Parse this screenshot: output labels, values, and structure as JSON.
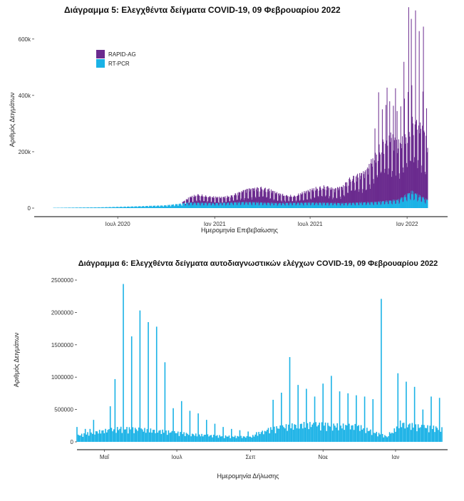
{
  "chart_data": [
    {
      "type": "bar",
      "title": "Διάγραμμα 5: Ελεγχθέντα δείγματα COVID-19, 09 Φεβρουαρίου 2022",
      "xlabel": "Ημερομηνία Επιβεβαίωσης",
      "ylabel": "Αριθμός Δειγμάτων",
      "stacked": true,
      "x_range": [
        "2020-03-01",
        "2022-02-09"
      ],
      "ylim": [
        0,
        650000
      ],
      "yticks": [
        0,
        200000,
        400000,
        600000
      ],
      "ytick_labels": [
        "0",
        "200k",
        "400k",
        "600k"
      ],
      "xtick_labels": [
        {
          "date": "2020-07-01",
          "label": "Ιουλ 2020"
        },
        {
          "date": "2021-01-01",
          "label": "Ιαν 2021"
        },
        {
          "date": "2021-07-01",
          "label": "Ιουλ 2021"
        },
        {
          "date": "2022-01-01",
          "label": "Ιαν 2022"
        }
      ],
      "legend_position": "top-left",
      "grid": false,
      "series": [
        {
          "name": "RAPID-AG",
          "color": "#6a2a8e",
          "points": [
            [
              "2020-11-01",
              5000
            ],
            [
              "2020-11-15",
              20000
            ],
            [
              "2020-12-01",
              30000
            ],
            [
              "2020-12-15",
              25000
            ],
            [
              "2021-01-01",
              22000
            ],
            [
              "2021-01-15",
              20000
            ],
            [
              "2021-02-01",
              25000
            ],
            [
              "2021-02-15",
              35000
            ],
            [
              "2021-03-01",
              45000
            ],
            [
              "2021-03-15",
              50000
            ],
            [
              "2021-04-01",
              55000
            ],
            [
              "2021-04-15",
              48000
            ],
            [
              "2021-05-01",
              35000
            ],
            [
              "2021-05-15",
              28000
            ],
            [
              "2021-06-01",
              25000
            ],
            [
              "2021-06-15",
              35000
            ],
            [
              "2021-07-01",
              45000
            ],
            [
              "2021-07-15",
              55000
            ],
            [
              "2021-08-01",
              60000
            ],
            [
              "2021-08-15",
              50000
            ],
            [
              "2021-09-01",
              60000
            ],
            [
              "2021-09-15",
              90000
            ],
            [
              "2021-10-01",
              100000
            ],
            [
              "2021-10-15",
              110000
            ],
            [
              "2021-11-01",
              170000
            ],
            [
              "2021-11-15",
              210000
            ],
            [
              "2021-12-01",
              230000
            ],
            [
              "2021-12-15",
              200000
            ],
            [
              "2022-01-01",
              230000
            ],
            [
              "2022-01-15",
              260000
            ],
            [
              "2022-02-01",
              240000
            ],
            [
              "2022-02-09",
              200000
            ]
          ],
          "peaks": [
            [
              "2021-11-08",
              390000
            ],
            [
              "2021-11-24",
              400000
            ],
            [
              "2021-12-10",
              410000
            ],
            [
              "2021-12-26",
              480000
            ],
            [
              "2022-01-04",
              660000
            ],
            [
              "2022-01-09",
              610000
            ],
            [
              "2022-01-17",
              650000
            ],
            [
              "2022-01-24",
              580000
            ],
            [
              "2022-02-01",
              610000
            ]
          ]
        },
        {
          "name": "RT-PCR",
          "color": "#1ab2e6",
          "points": [
            [
              "2020-03-01",
              1000
            ],
            [
              "2020-06-01",
              3000
            ],
            [
              "2020-08-01",
              6000
            ],
            [
              "2020-10-01",
              10000
            ],
            [
              "2020-11-15",
              20000
            ],
            [
              "2021-01-01",
              18000
            ],
            [
              "2021-03-01",
              22000
            ],
            [
              "2021-05-01",
              18000
            ],
            [
              "2021-07-01",
              20000
            ],
            [
              "2021-09-01",
              18000
            ],
            [
              "2021-11-01",
              22000
            ],
            [
              "2021-12-15",
              30000
            ],
            [
              "2022-01-01",
              50000
            ],
            [
              "2022-01-10",
              60000
            ],
            [
              "2022-02-09",
              30000
            ]
          ]
        }
      ]
    },
    {
      "type": "bar",
      "title": "Διάγραμμα 6: Ελεγχθέντα δείγματα αυτοδιαγνωστικών ελέγχων COVID-19, 09 Φεβρουαρίου 2022",
      "xlabel": "Ημερομηνία Δήλωσης",
      "ylabel": "Αριθμός Δειγμάτων",
      "x_range": [
        "2021-04-08",
        "2022-02-09"
      ],
      "ylim": [
        0,
        2500000
      ],
      "yticks": [
        0,
        500000,
        1000000,
        1500000,
        2000000,
        2500000
      ],
      "ytick_labels": [
        "0",
        "500000",
        "1000000",
        "1500000",
        "2000000",
        "2500000"
      ],
      "xtick_labels": [
        {
          "date": "2021-05-01",
          "label": "Μαΐ"
        },
        {
          "date": "2021-07-01",
          "label": "Ιουλ"
        },
        {
          "date": "2021-09-01",
          "label": "Σεπ"
        },
        {
          "date": "2021-11-01",
          "label": "Νοε"
        },
        {
          "date": "2022-01-01",
          "label": "Ιαν"
        }
      ],
      "grid": false,
      "series": [
        {
          "name": "",
          "color": "#1ab2e6",
          "points": [
            [
              "2021-04-08",
              100000
            ],
            [
              "2021-04-20",
              150000
            ],
            [
              "2021-05-01",
              180000
            ],
            [
              "2021-05-15",
              220000
            ],
            [
              "2021-06-01",
              200000
            ],
            [
              "2021-06-15",
              180000
            ],
            [
              "2021-07-01",
              150000
            ],
            [
              "2021-07-15",
              120000
            ],
            [
              "2021-08-01",
              100000
            ],
            [
              "2021-08-15",
              90000
            ],
            [
              "2021-09-01",
              80000
            ],
            [
              "2021-09-15",
              200000
            ],
            [
              "2021-10-01",
              250000
            ],
            [
              "2021-10-15",
              280000
            ],
            [
              "2021-11-01",
              280000
            ],
            [
              "2021-11-15",
              260000
            ],
            [
              "2021-12-01",
              250000
            ],
            [
              "2021-12-15",
              150000
            ],
            [
              "2021-12-26",
              80000
            ],
            [
              "2022-01-05",
              300000
            ],
            [
              "2022-01-20",
              250000
            ],
            [
              "2022-02-09",
              220000
            ]
          ],
          "peaks": [
            [
              "2021-04-08",
              230000
            ],
            [
              "2021-04-15",
              200000
            ],
            [
              "2021-04-19",
              200000
            ],
            [
              "2021-04-22",
              340000
            ],
            [
              "2021-05-06",
              550000
            ],
            [
              "2021-05-10",
              970000
            ],
            [
              "2021-05-17",
              2440000
            ],
            [
              "2021-05-24",
              1630000
            ],
            [
              "2021-05-31",
              2030000
            ],
            [
              "2021-06-07",
              1850000
            ],
            [
              "2021-06-14",
              1780000
            ],
            [
              "2021-06-21",
              1230000
            ],
            [
              "2021-06-28",
              520000
            ],
            [
              "2021-07-05",
              630000
            ],
            [
              "2021-07-12",
              480000
            ],
            [
              "2021-07-19",
              440000
            ],
            [
              "2021-07-26",
              340000
            ],
            [
              "2021-08-02",
              280000
            ],
            [
              "2021-08-09",
              230000
            ],
            [
              "2021-08-16",
              200000
            ],
            [
              "2021-08-23",
              180000
            ],
            [
              "2021-08-30",
              160000
            ],
            [
              "2021-09-06",
              150000
            ],
            [
              "2021-09-13",
              170000
            ],
            [
              "2021-09-20",
              650000
            ],
            [
              "2021-09-27",
              760000
            ],
            [
              "2021-10-04",
              1310000
            ],
            [
              "2021-10-11",
              880000
            ],
            [
              "2021-10-18",
              820000
            ],
            [
              "2021-10-25",
              700000
            ],
            [
              "2021-11-01",
              900000
            ],
            [
              "2021-11-08",
              1020000
            ],
            [
              "2021-11-15",
              780000
            ],
            [
              "2021-11-22",
              750000
            ],
            [
              "2021-11-29",
              720000
            ],
            [
              "2021-12-06",
              700000
            ],
            [
              "2021-12-13",
              660000
            ],
            [
              "2021-12-20",
              2210000
            ],
            [
              "2021-12-27",
              150000
            ],
            [
              "2022-01-03",
              1060000
            ],
            [
              "2022-01-10",
              930000
            ],
            [
              "2022-01-17",
              850000
            ],
            [
              "2022-01-24",
              500000
            ],
            [
              "2022-01-31",
              700000
            ],
            [
              "2022-02-07",
              680000
            ]
          ]
        }
      ]
    }
  ]
}
